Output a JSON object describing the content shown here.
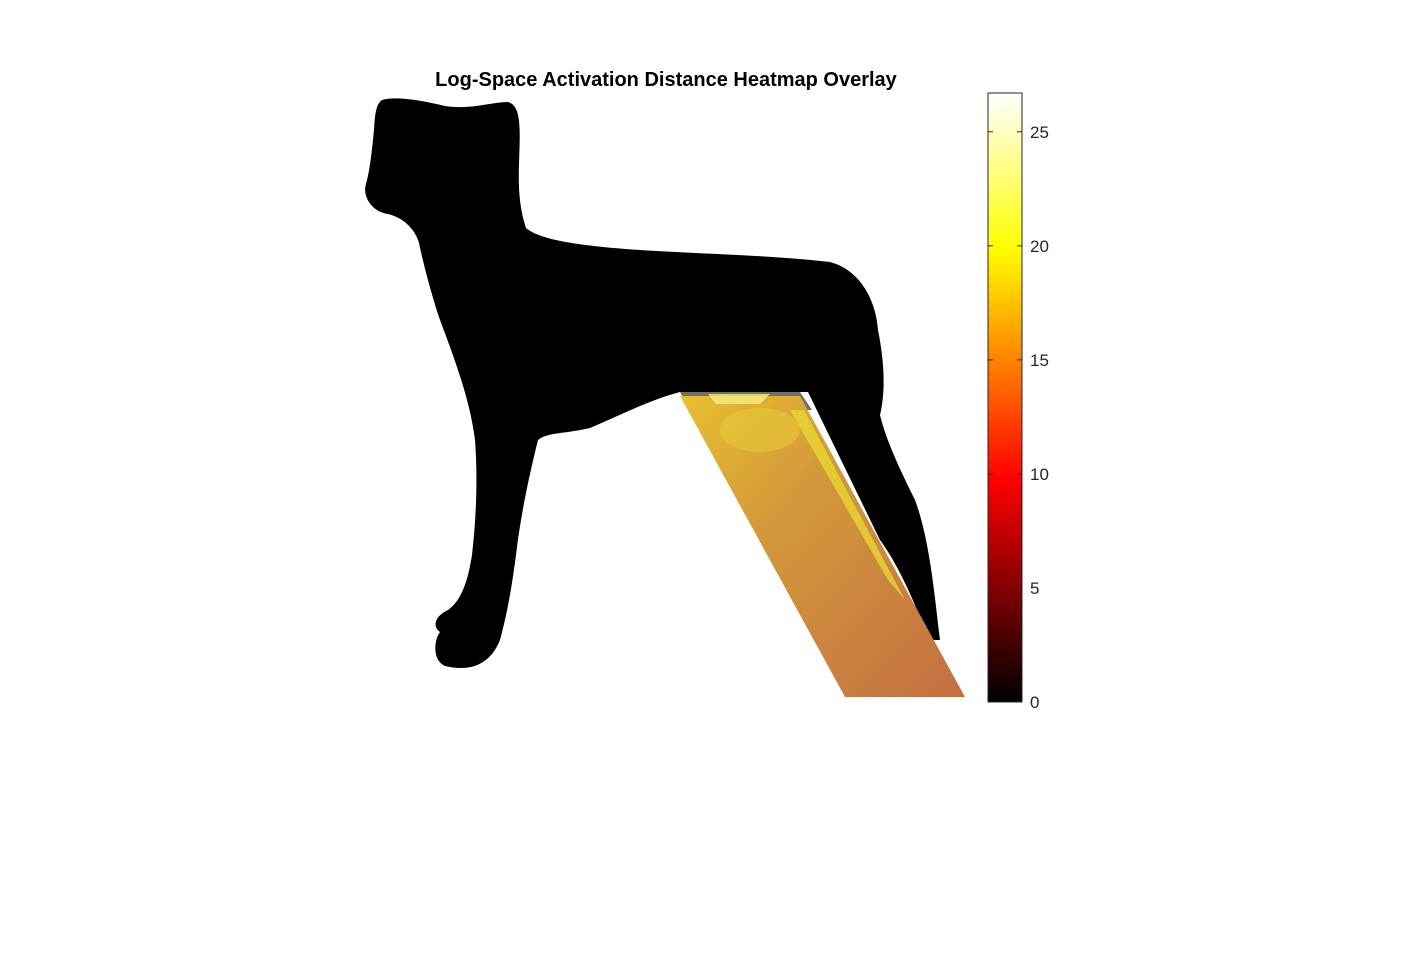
{
  "chart_data": {
    "type": "heatmap",
    "title": "Log-Space Activation Distance Heatmap Overlay",
    "colormap": "hot",
    "grid": false,
    "colorbar": {
      "location": "right",
      "range": [
        0,
        26.7
      ],
      "ticks": [
        0,
        5,
        10,
        15,
        20,
        25
      ],
      "tick_labels": [
        "0",
        "5",
        "10",
        "15",
        "20",
        "25"
      ]
    },
    "background_image": "dog-silhouette",
    "overlay": {
      "region": "hind-leg",
      "typical_value": 15.5,
      "max_value": 26.7,
      "min_value": 14
    }
  }
}
